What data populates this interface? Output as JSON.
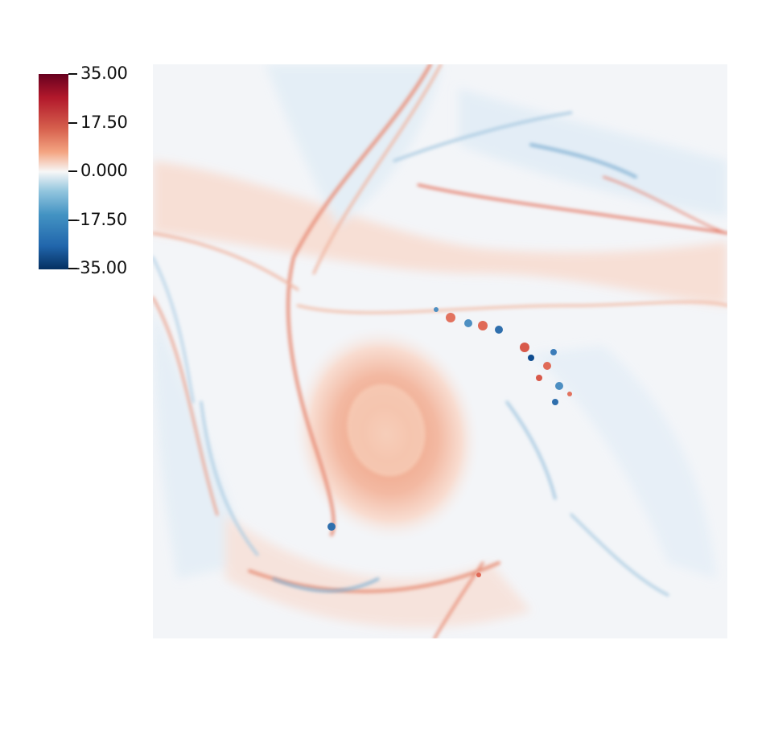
{
  "colorbar": {
    "colormap": "RdBu (diverging, blue-white-red)",
    "colors": {
      "max": "#67001f",
      "upper": "#d6604d",
      "mid": "#f7f7f7",
      "lower": "#4393c3",
      "min": "#053061"
    },
    "range": [
      -35,
      35
    ],
    "ticks": [
      {
        "label": "35.00"
      },
      {
        "label": "17.50"
      },
      {
        "label": "0.000"
      },
      {
        "label": "-17.50"
      },
      {
        "label": "-35.00"
      }
    ]
  },
  "field": {
    "description_icon": "vorticity-field-image",
    "background": "#f3f5f8"
  }
}
